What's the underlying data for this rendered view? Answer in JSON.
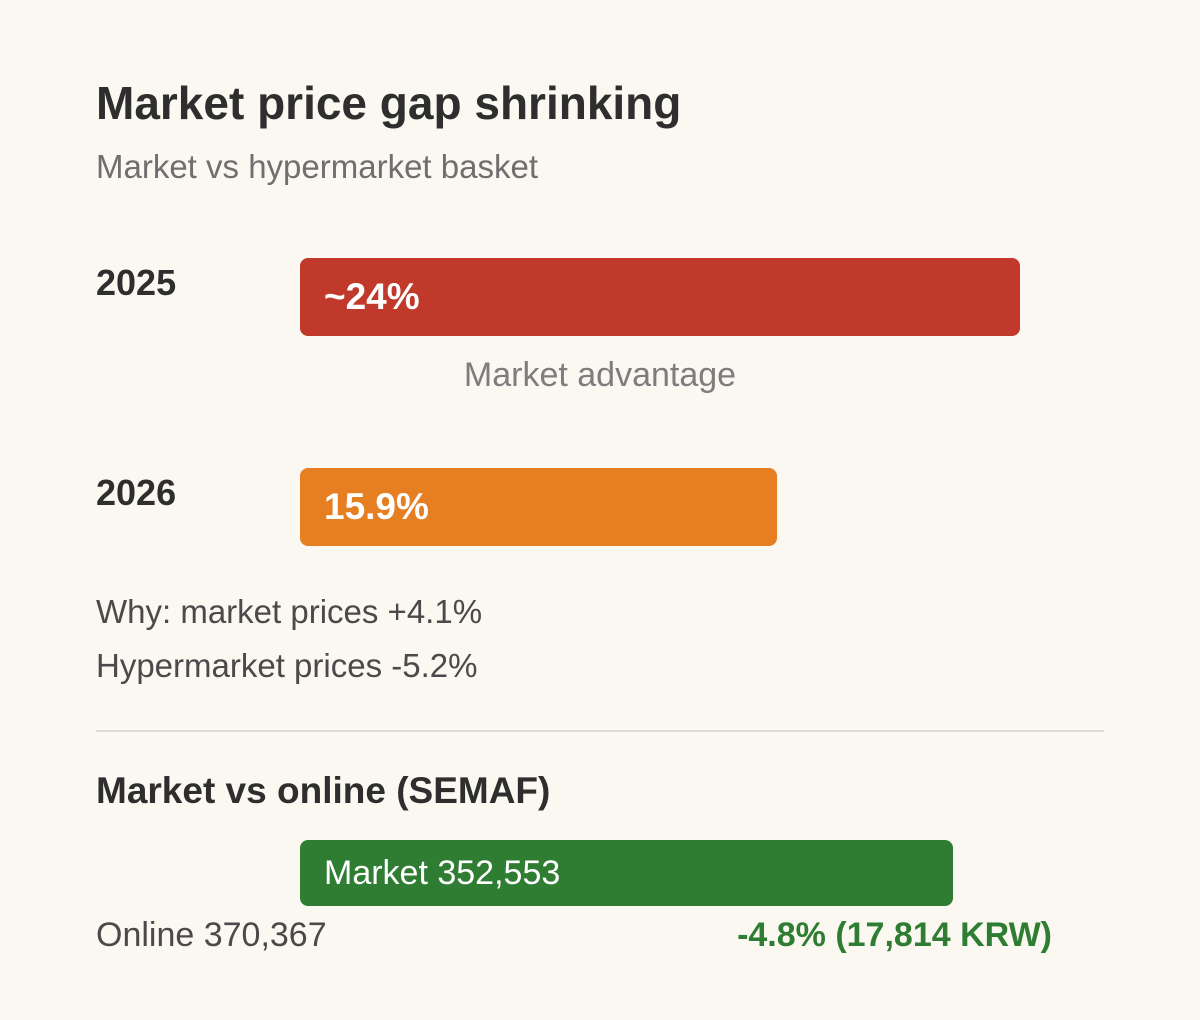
{
  "chart_data": [
    {
      "type": "bar",
      "title": "Market price gap shrinking",
      "subtitle": "Market vs hypermarket basket",
      "categories": [
        "2025",
        "2026"
      ],
      "values": [
        24,
        15.9
      ],
      "value_labels": [
        "~24%",
        "15.9%"
      ],
      "caption": "Market advantage",
      "colors": [
        "#c0392b",
        "#e67e22"
      ],
      "xlim": [
        0,
        24
      ],
      "notes": [
        "Why: market prices +4.1%",
        "Hypermarket prices -5.2%"
      ]
    },
    {
      "type": "bar",
      "title": "Market vs online (SEMAF)",
      "market_label": "Market 352,553",
      "online_label": "Online 370,367",
      "market_value": 352553,
      "online_value": 370367,
      "difference_label": "-4.8% (17,814 KRW)",
      "colors": {
        "market": "#2e7d32",
        "difference": "#2e7d32"
      }
    }
  ]
}
